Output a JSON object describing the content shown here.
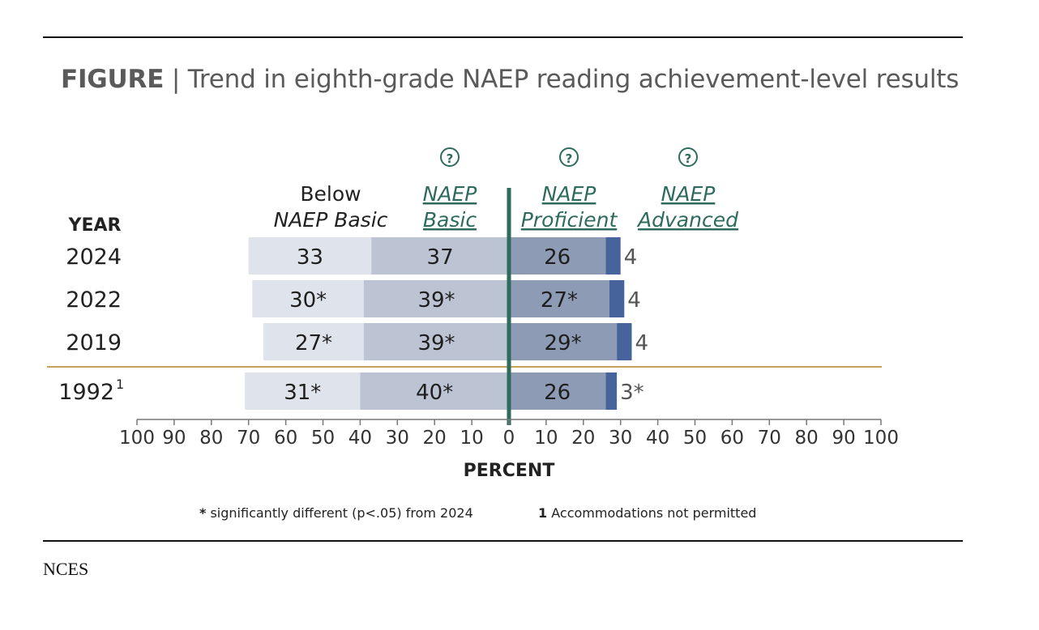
{
  "figure": {
    "label": "FIGURE",
    "separator": "|",
    "title": "Trend in eighth-grade NAEP reading achievement-level results"
  },
  "source": "NCES",
  "footnotes": {
    "significance_mark": "*",
    "significance_text": "significantly different (p<.05) from 2024",
    "accommodation_mark": "1",
    "accommodation_text": "Accommodations not permitted"
  },
  "colors": {
    "below_basic": "#dfe3eb",
    "basic": "#bcc4d3",
    "proficient": "#8e9bb5",
    "advanced": "#46649b",
    "center_line": "#2e6b5e",
    "divider": "#c8a45a",
    "link": "#2e6b5e"
  },
  "chart_data": {
    "type": "bar",
    "orientation": "horizontal-diverging",
    "xlabel": "PERCENT",
    "ylabel": "YEAR",
    "xlim": [
      -100,
      100
    ],
    "xticks": [
      -100,
      -90,
      -80,
      -70,
      -60,
      -50,
      -40,
      -30,
      -20,
      -10,
      0,
      10,
      20,
      30,
      40,
      50,
      60,
      70,
      80,
      90,
      100
    ],
    "xtick_labels": [
      "100",
      "90",
      "80",
      "70",
      "60",
      "50",
      "40",
      "30",
      "20",
      "10",
      "0",
      "10",
      "20",
      "30",
      "40",
      "50",
      "60",
      "70",
      "80",
      "90",
      "100"
    ],
    "legend": [
      {
        "line1": "Below",
        "line2": "NAEP Basic",
        "link": false
      },
      {
        "line1": "NAEP",
        "line2": "Basic",
        "link": true
      },
      {
        "line1": "NAEP",
        "line2": "Proficient",
        "link": true
      },
      {
        "line1": "NAEP",
        "line2": "Advanced",
        "link": true
      }
    ],
    "categories": [
      "2024",
      "2022",
      "2019",
      "1992"
    ],
    "category_superscripts": [
      "",
      "",
      "",
      "1"
    ],
    "series": [
      {
        "name": "Below NAEP Basic",
        "values": [
          33,
          30,
          27,
          31
        ],
        "labels": [
          "33",
          "30*",
          "27*",
          "31*"
        ]
      },
      {
        "name": "NAEP Basic",
        "values": [
          37,
          39,
          39,
          40
        ],
        "labels": [
          "37",
          "39*",
          "39*",
          "40*"
        ]
      },
      {
        "name": "NAEP Proficient",
        "values": [
          26,
          27,
          29,
          26
        ],
        "labels": [
          "26",
          "27*",
          "29*",
          "26"
        ]
      },
      {
        "name": "NAEP Advanced",
        "values": [
          4,
          4,
          4,
          3
        ],
        "labels": [
          "4",
          "4",
          "4",
          "3*"
        ]
      }
    ]
  }
}
